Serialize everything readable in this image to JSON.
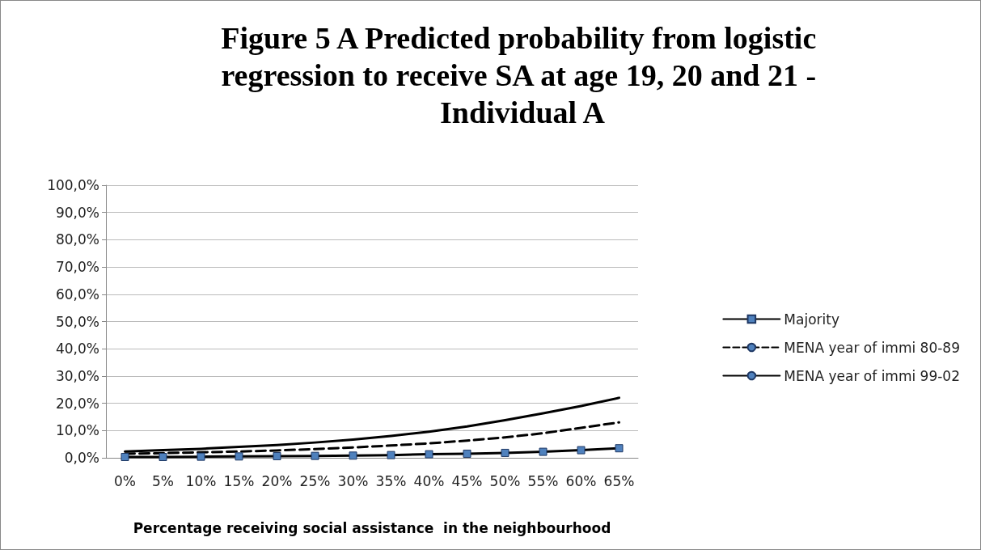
{
  "chart_data": {
    "type": "line",
    "title": "Figure 5 A Predicted probability from logistic regression to receive SA at age 19, 20 and 21 - Individual A",
    "xlabel": "Percentage receiving social assistance  in the neighbourhood",
    "categories": [
      "0%",
      "5%",
      "10%",
      "15%",
      "20%",
      "25%",
      "30%",
      "35%",
      "40%",
      "45%",
      "50%",
      "55%",
      "60%",
      "65%"
    ],
    "series": [
      {
        "name": "Majority",
        "color": "#000000",
        "marker": "square",
        "line_style": "solid",
        "values": [
          0.3,
          0.3,
          0.4,
          0.5,
          0.6,
          0.7,
          0.8,
          1.0,
          1.3,
          1.5,
          1.8,
          2.2,
          2.8,
          3.5
        ]
      },
      {
        "name": "MENA year of immi 80-89",
        "color": "#000000",
        "marker": "none",
        "line_style": "dashed",
        "values": [
          1.5,
          1.7,
          2.0,
          2.3,
          2.7,
          3.2,
          3.8,
          4.5,
          5.3,
          6.3,
          7.5,
          9.0,
          11,
          13
        ]
      },
      {
        "name": "MENA year of immi 99-02",
        "color": "#000000",
        "marker": "none",
        "line_style": "solid",
        "values": [
          2.3,
          2.8,
          3.3,
          4.0,
          4.7,
          5.6,
          6.7,
          8.0,
          9.6,
          11.5,
          13.8,
          16.3,
          19,
          22
        ]
      }
    ],
    "ylim": [
      0,
      100
    ],
    "yticks": [
      {
        "value": 0,
        "label": "0,0%"
      },
      {
        "value": 10,
        "label": "10,0%"
      },
      {
        "value": 20,
        "label": "20,0%"
      },
      {
        "value": 30,
        "label": "30,0%"
      },
      {
        "value": 40,
        "label": "40,0%"
      },
      {
        "value": 50,
        "label": "50,0%"
      },
      {
        "value": 60,
        "label": "60,0%"
      },
      {
        "value": 70,
        "label": "70,0%"
      },
      {
        "value": 80,
        "label": "80,0%"
      },
      {
        "value": 90,
        "label": "90,0%"
      },
      {
        "value": 100,
        "label": "100,0%"
      }
    ],
    "grid": "y",
    "legend": "right"
  }
}
